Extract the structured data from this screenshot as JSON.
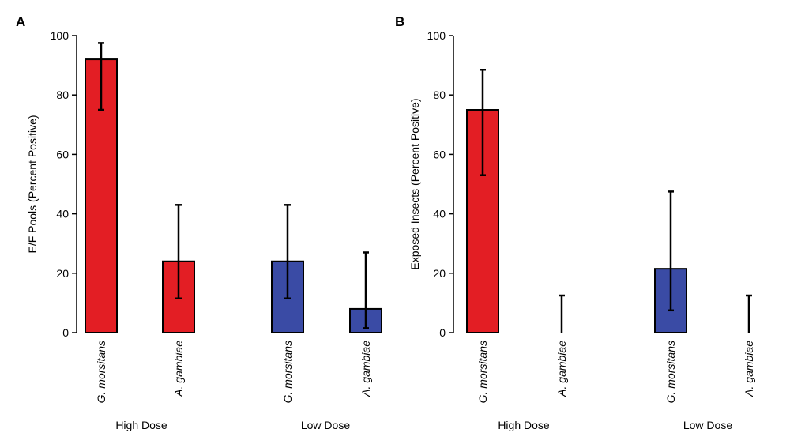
{
  "chart_data": [
    {
      "type": "bar",
      "panel": "A",
      "ylabel": "E/F Pools (Percent Positive)",
      "ylim": [
        0,
        100
      ],
      "yticks": [
        0,
        20,
        40,
        60,
        80,
        100
      ],
      "grid": false,
      "categories": [
        "G. morsitans",
        "A. gambiae",
        "G. morsitans",
        "A. gambiae"
      ],
      "groups": [
        "High Dose",
        "High Dose",
        "Low Dose",
        "Low Dose"
      ],
      "group_labels": [
        "High Dose",
        "Low Dose"
      ],
      "values": [
        92,
        24,
        24,
        8
      ],
      "error_low": [
        75,
        11.5,
        11.5,
        1.5
      ],
      "error_high": [
        97.5,
        43,
        43,
        27
      ],
      "colors": [
        "#e31e24",
        "#e31e24",
        "#3a4ba5",
        "#3a4ba5"
      ]
    },
    {
      "type": "bar",
      "panel": "B",
      "ylabel": "Exposed Insects (Percent Positive)",
      "ylim": [
        0,
        100
      ],
      "yticks": [
        0,
        20,
        40,
        60,
        80,
        100
      ],
      "grid": false,
      "categories": [
        "G. morsitans",
        "A. gambiae",
        "G. morsitans",
        "A. gambiae"
      ],
      "groups": [
        "High Dose",
        "High Dose",
        "Low Dose",
        "Low Dose"
      ],
      "group_labels": [
        "High Dose",
        "Low Dose"
      ],
      "values": [
        75,
        0,
        21.5,
        0
      ],
      "error_low": [
        53,
        0,
        7.5,
        0
      ],
      "error_high": [
        88.5,
        12.5,
        47.5,
        12.5
      ],
      "colors": [
        "#e31e24",
        "#e31e24",
        "#3a4ba5",
        "#3a4ba5"
      ]
    }
  ]
}
